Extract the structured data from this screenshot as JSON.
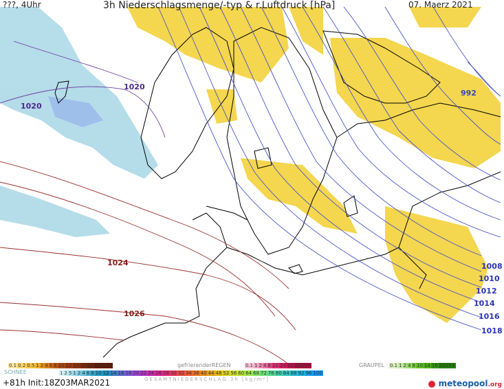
{
  "header": {
    "left": "???, 4Uhr",
    "title": "3h Niederschlagsmenge/-typ & r.Luftdruck [hPa]",
    "date": "07. Maerz 2021"
  },
  "isobars": [
    {
      "label": "1020"
    },
    {
      "label": "1020"
    },
    {
      "label": "992"
    },
    {
      "label": "1024"
    },
    {
      "label": "1026"
    },
    {
      "label": "1008"
    },
    {
      "label": "1010"
    },
    {
      "label": "1012"
    },
    {
      "label": "1014"
    },
    {
      "label": "1016"
    },
    {
      "label": "1018"
    }
  ],
  "legend": {
    "rain_scale": [
      "0.1",
      "0.2",
      "0.5",
      "1",
      "2",
      "4",
      "6",
      "8",
      "10",
      "12",
      "14",
      "16",
      "18",
      "2025+"
    ],
    "freezing_label": "gefrierenderREGEN",
    "freezing_scale": [
      "0.1",
      "1",
      "2",
      "4",
      "8",
      "10",
      "14",
      "16",
      "2025+"
    ],
    "graupel_label": "GRAUPEL",
    "graupel_scale": [
      "0.1",
      "1",
      "2",
      "4",
      "8",
      "10",
      "14",
      "16",
      "2025+"
    ],
    "snow_label": "SCHNEE",
    "snow_scale": [
      "1",
      "2",
      "5",
      "1",
      "2",
      "4",
      "6",
      "8",
      "10",
      "12",
      "14",
      "16",
      "18",
      "20",
      "22",
      "24",
      "26",
      "28",
      "30",
      "32",
      "34",
      "36",
      "40",
      "44",
      "48",
      "52",
      "56",
      "60",
      "64",
      "68",
      "72",
      "76",
      "80",
      "84",
      "88",
      "92",
      "96",
      "100"
    ],
    "total_label": "GESAMTNIEDERSCHLAG 3h [kg/m²]"
  },
  "footer": {
    "run": "+81h Init:18Z03MAR2021",
    "brand": "meteopool",
    "brand_tld": ".org"
  },
  "colors": {
    "rain": "#f3d23c",
    "snow": "#a9d7e6",
    "coast": "#000000",
    "isobar_low": "#4a55c8",
    "isobar_high": "#9b2d2d"
  }
}
